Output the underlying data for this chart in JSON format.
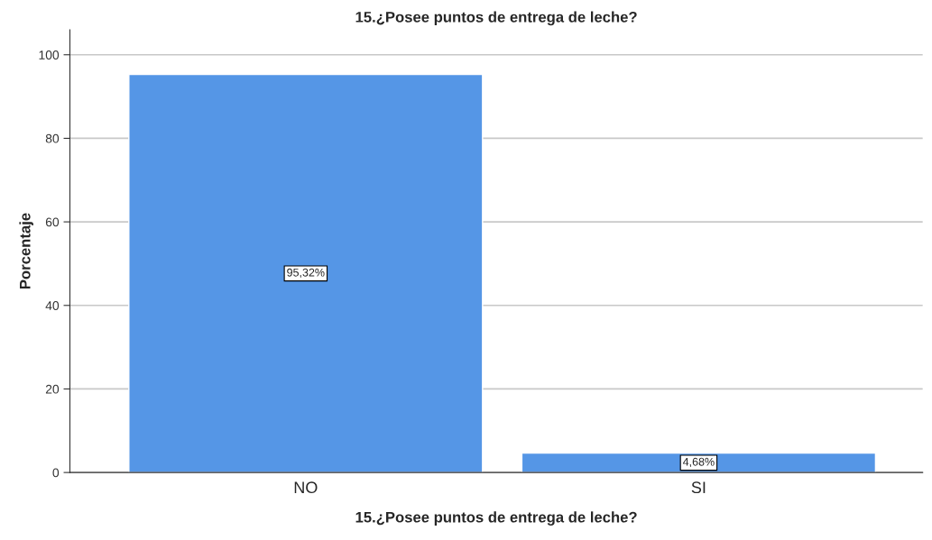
{
  "chart_data": {
    "type": "bar",
    "title": "15.¿Posee puntos de entrega de leche?",
    "xlabel": "15.¿Posee puntos de entrega de leche?",
    "ylabel": "Porcentaje",
    "categories": [
      "NO",
      "SI"
    ],
    "values": [
      95.32,
      4.68
    ],
    "value_labels": [
      "95,32%",
      "4,68%"
    ],
    "color": "#5596e6",
    "ylim": [
      0,
      106
    ],
    "yticks": [
      0,
      20,
      40,
      60,
      80,
      100
    ],
    "grid": "y",
    "legend": false
  }
}
